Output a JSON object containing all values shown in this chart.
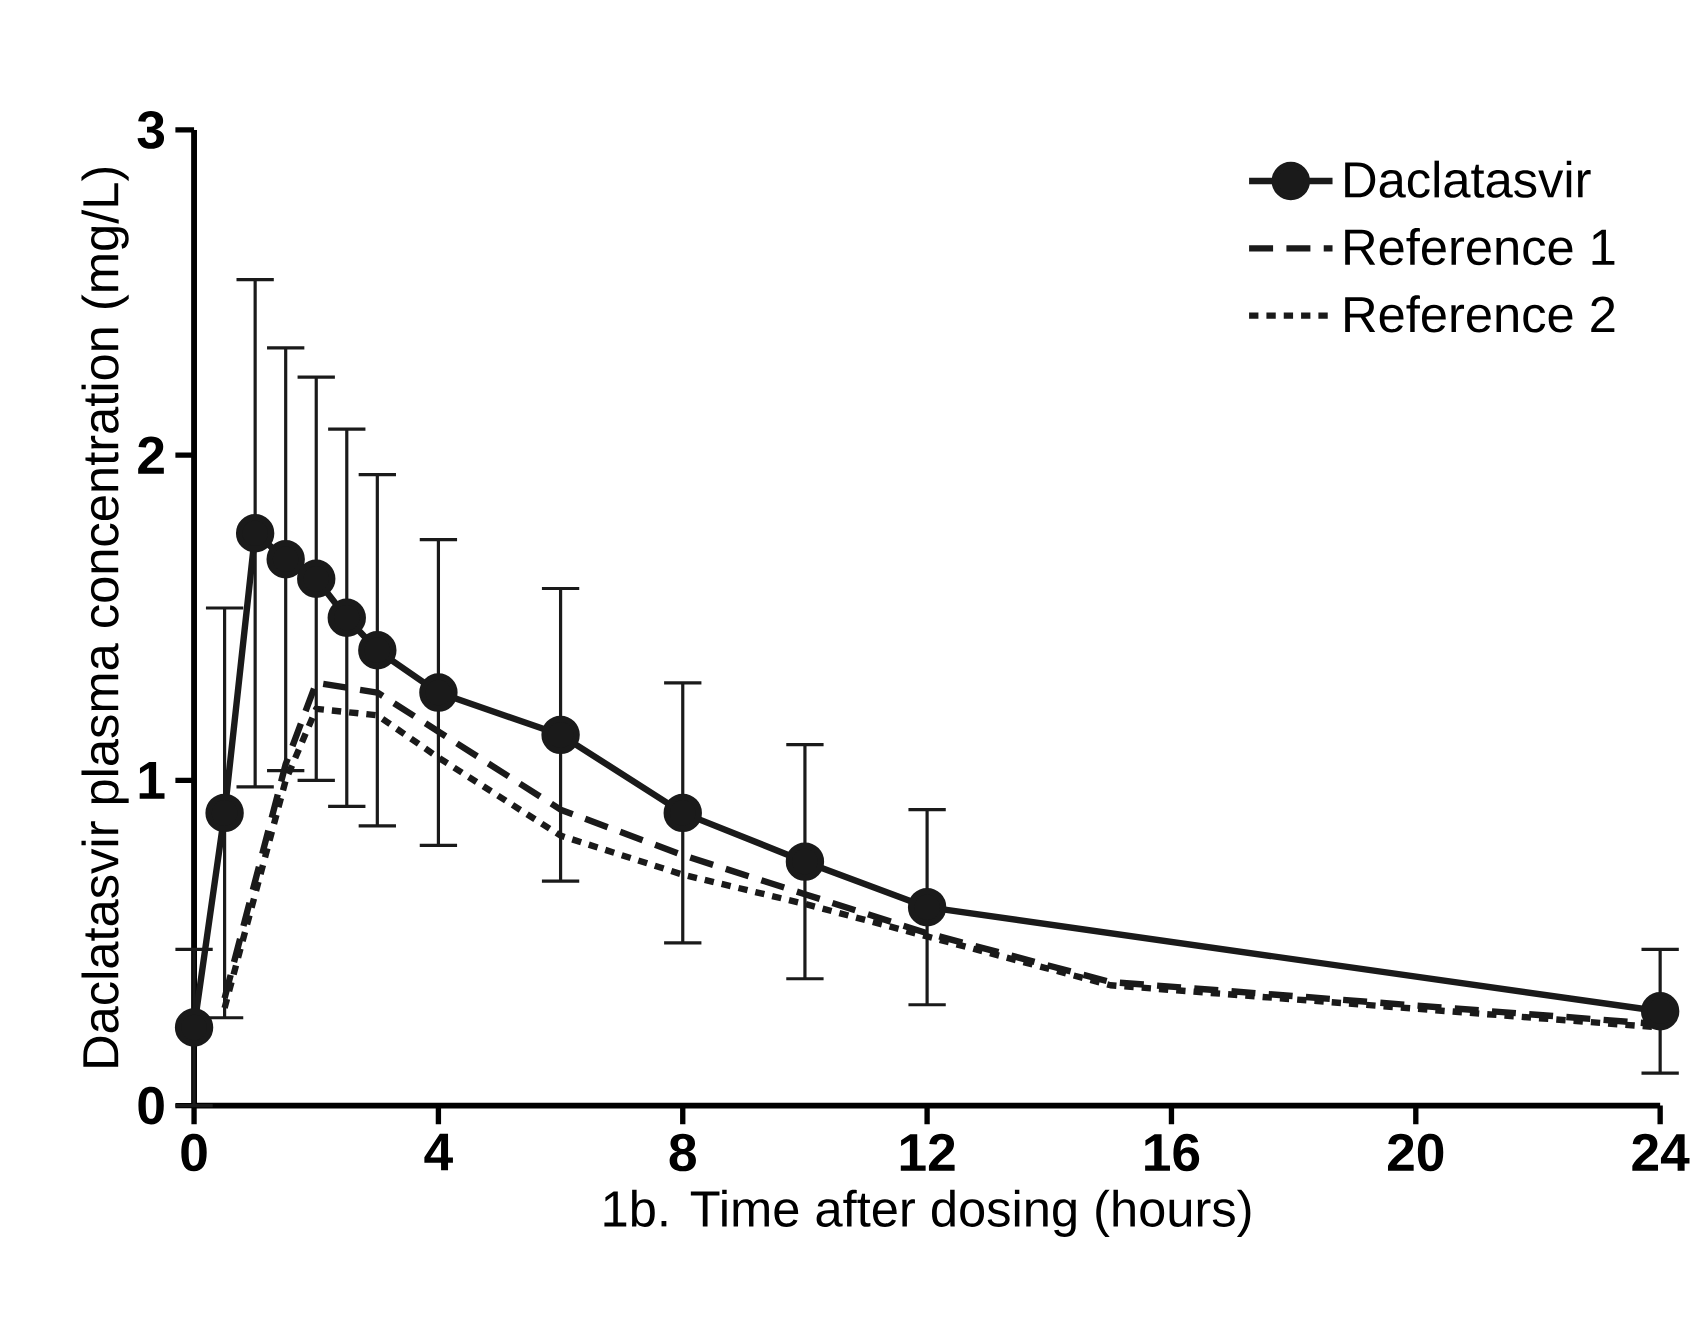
{
  "chart_data": {
    "type": "line",
    "xlabel": "1b. Time after dosing (hours)",
    "ylabel": "Daclatasvir plasma concentration (mg/L)",
    "xlim": [
      0,
      24
    ],
    "ylim": [
      0,
      3
    ],
    "xticks": [
      0,
      4,
      8,
      12,
      16,
      20,
      24
    ],
    "yticks": [
      0,
      1,
      2,
      3
    ],
    "legend": "top right",
    "grid": false,
    "series": [
      {
        "name": "Daclatasvir",
        "color": "#1a1a1a",
        "marker": "circle",
        "line_style": "solid",
        "x": [
          0,
          0.5,
          1,
          1.5,
          2,
          2.5,
          3,
          4,
          6,
          8,
          10,
          12,
          24
        ],
        "values": [
          0.24,
          0.9,
          1.76,
          1.68,
          1.62,
          1.5,
          1.4,
          1.27,
          1.14,
          0.9,
          0.75,
          0.61,
          0.29
        ],
        "errors": [
          0.24,
          0.63,
          0.78,
          0.65,
          0.62,
          0.58,
          0.54,
          0.47,
          0.45,
          0.4,
          0.36,
          0.3,
          0.19
        ]
      },
      {
        "name": "Reference 1",
        "color": "#1a1a1a",
        "marker": "none",
        "line_style": "dashed",
        "x": [
          0.5,
          1.5,
          2,
          3,
          4,
          6,
          8,
          10,
          12,
          15,
          24
        ],
        "values": [
          0.33,
          1.05,
          1.3,
          1.27,
          1.15,
          0.91,
          0.77,
          0.65,
          0.53,
          0.38,
          0.25
        ]
      },
      {
        "name": "Reference 2",
        "color": "#1a1a1a",
        "marker": "none",
        "line_style": "dotted",
        "x": [
          0.5,
          1.5,
          2,
          3,
          4,
          6,
          8,
          10,
          12,
          15,
          24
        ],
        "values": [
          0.3,
          1.0,
          1.22,
          1.2,
          1.07,
          0.83,
          0.71,
          0.62,
          0.52,
          0.37,
          0.24
        ]
      }
    ]
  }
}
